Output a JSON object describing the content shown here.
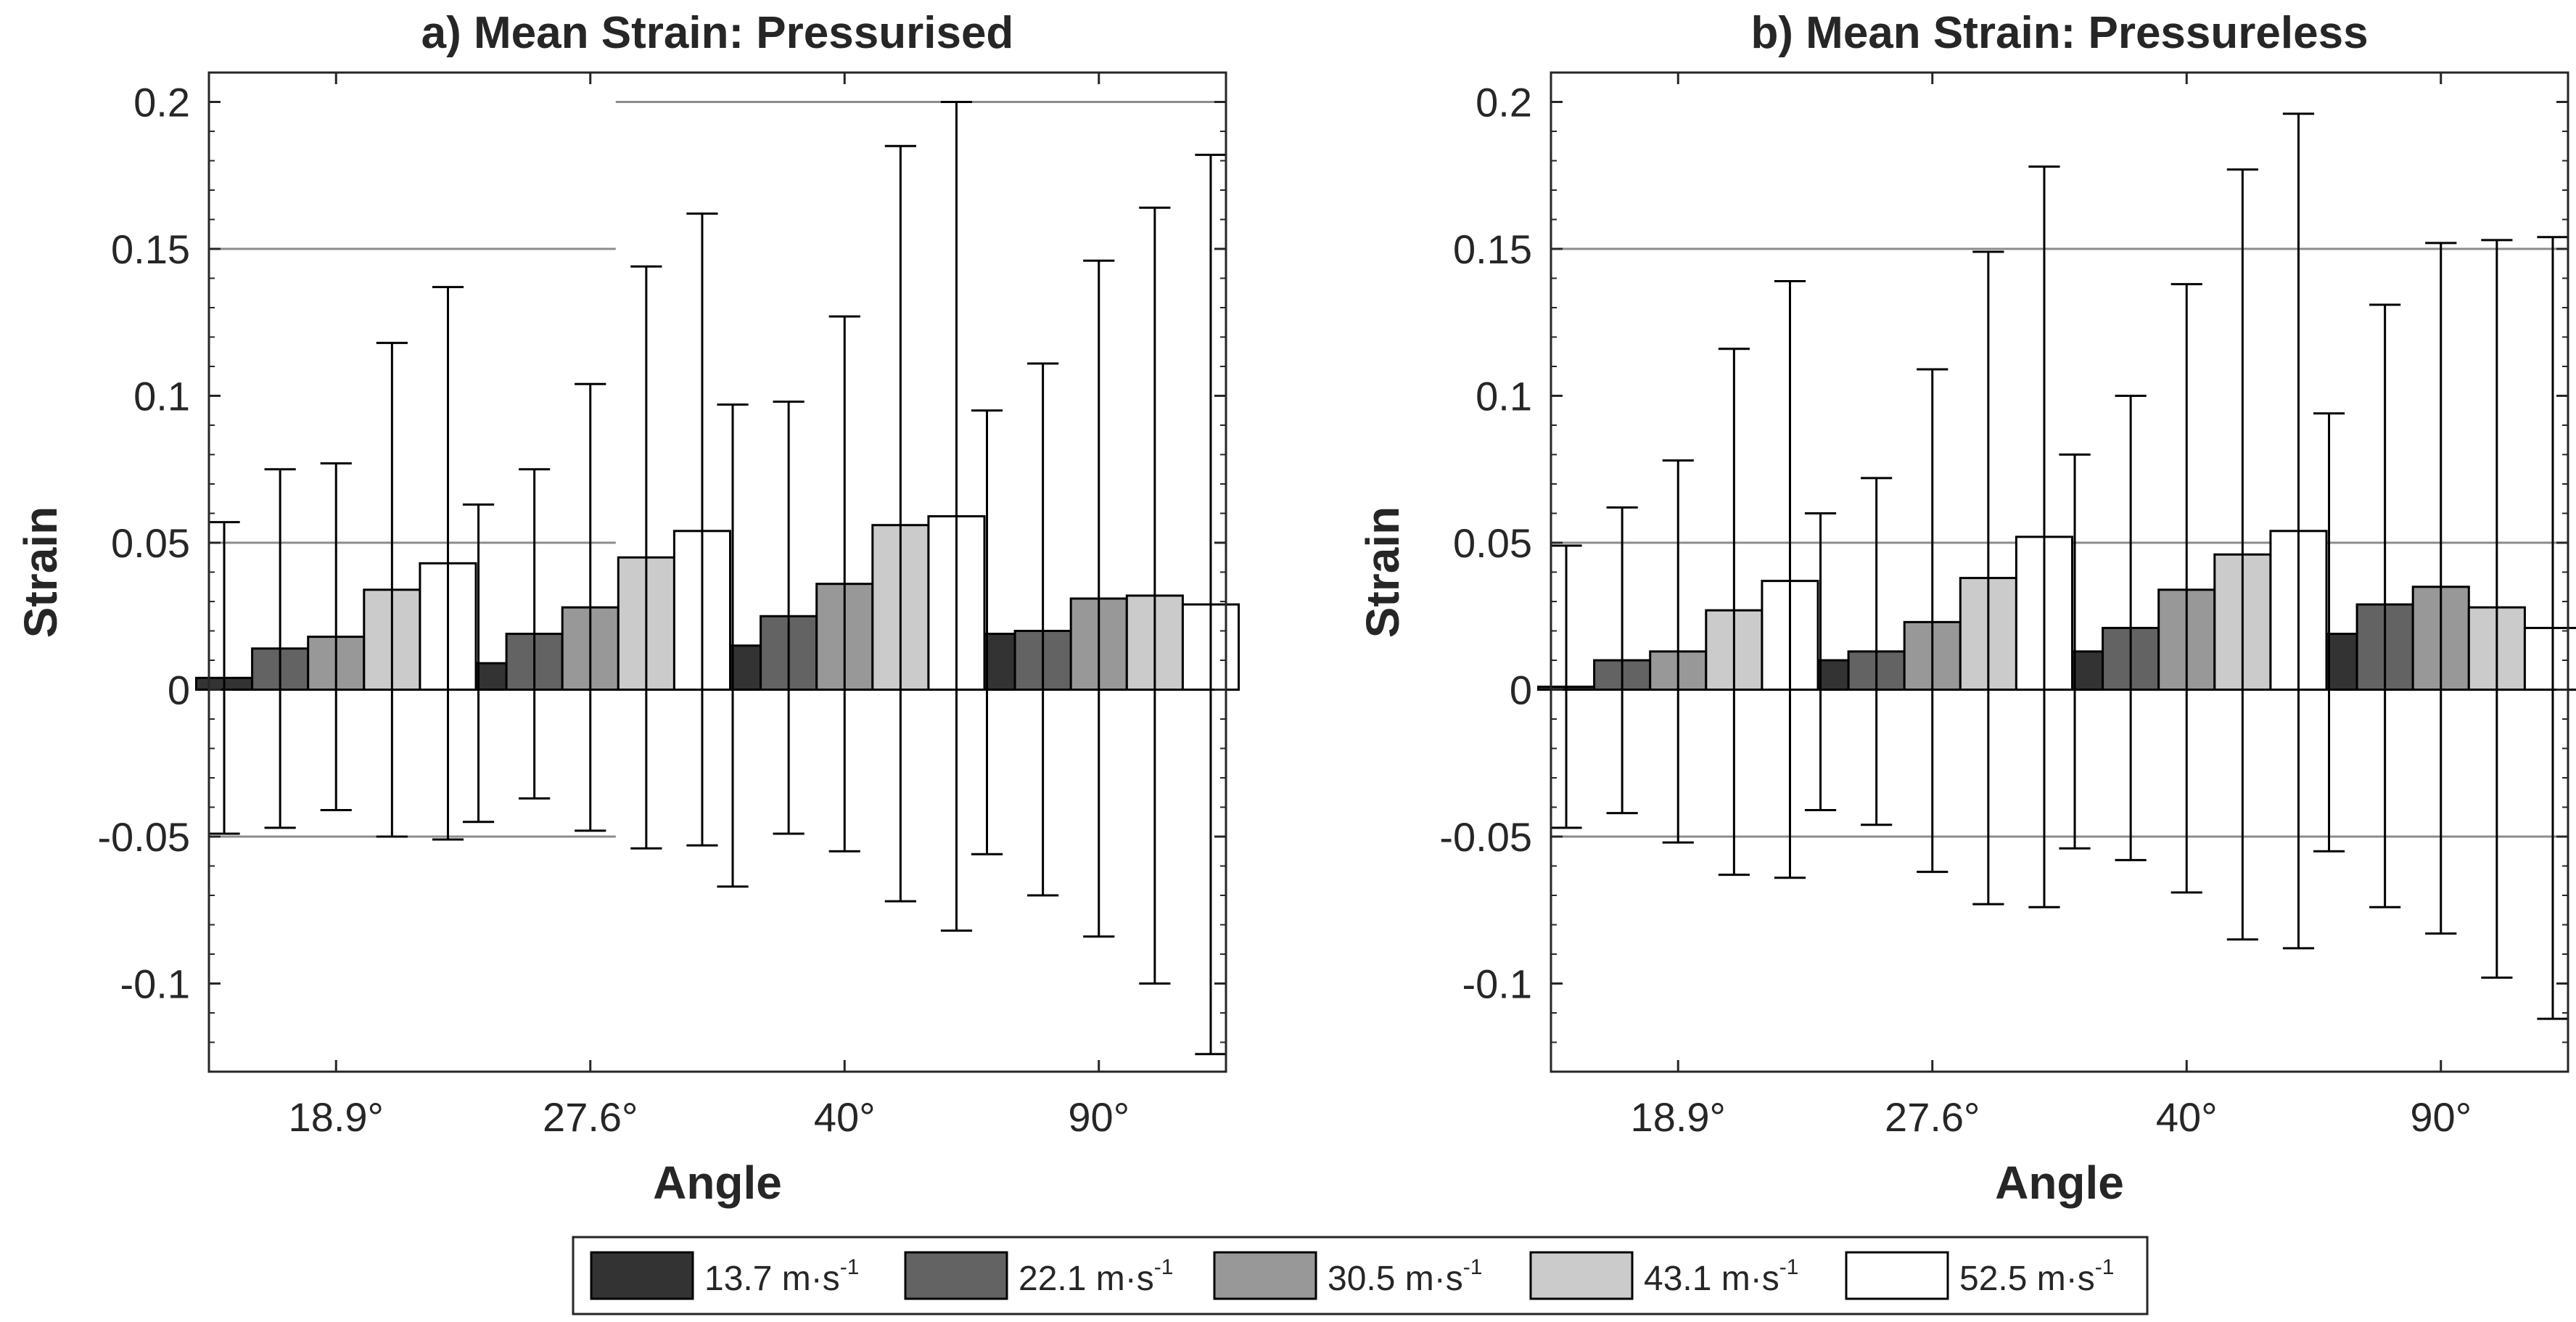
{
  "chart_data": [
    {
      "type": "bar",
      "title": "a) Mean Strain: Pressurised",
      "xlabel": "Angle",
      "ylabel": "Strain",
      "ylim": [
        -0.13,
        0.21
      ],
      "yticks": [
        -0.1,
        -0.05,
        0,
        0.05,
        0.1,
        0.15,
        0.2
      ],
      "ytick_labels": [
        "-0.1",
        "-0.05",
        "0",
        "0.05",
        "0.1",
        "0.15",
        "0.2"
      ],
      "categories": [
        "18.9°",
        "27.6°",
        "40°",
        "90°"
      ],
      "series": [
        {
          "name": "13.7 m·s-1",
          "values": [
            0.004,
            0.009,
            0.015,
            0.019
          ],
          "err_low": [
            -0.049,
            -0.045,
            -0.067,
            -0.056
          ],
          "err_high": [
            0.057,
            0.063,
            0.097,
            0.095
          ]
        },
        {
          "name": "22.1 m·s-1",
          "values": [
            0.014,
            0.019,
            0.025,
            0.02
          ],
          "err_low": [
            -0.047,
            -0.037,
            -0.049,
            -0.07
          ],
          "err_high": [
            0.075,
            0.075,
            0.098,
            0.111
          ]
        },
        {
          "name": "30.5 m·s-1",
          "values": [
            0.018,
            0.028,
            0.036,
            0.031
          ],
          "err_low": [
            -0.041,
            -0.048,
            -0.055,
            -0.084
          ],
          "err_high": [
            0.077,
            0.104,
            0.127,
            0.146
          ]
        },
        {
          "name": "43.1 m·s-1",
          "values": [
            0.034,
            0.045,
            0.056,
            0.032
          ],
          "err_low": [
            -0.05,
            -0.054,
            -0.072,
            -0.1
          ],
          "err_high": [
            0.118,
            0.144,
            0.185,
            0.164
          ]
        },
        {
          "name": "52.5 m·s-1",
          "values": [
            0.043,
            0.054,
            0.059,
            0.029
          ],
          "err_low": [
            -0.051,
            -0.053,
            -0.082,
            -0.124
          ],
          "err_high": [
            0.137,
            0.162,
            0.2,
            0.182
          ]
        }
      ],
      "reference_lines": [
        {
          "y": 0.15,
          "x_range": [
            0.5,
            2.5
          ]
        },
        {
          "y": 0.05,
          "x_range": [
            0.5,
            2.5
          ]
        },
        {
          "y": -0.05,
          "x_range": [
            0.5,
            2.5
          ]
        },
        {
          "y": 0.2,
          "x_range": [
            2.5,
            5.5
          ]
        }
      ],
      "grid": false
    },
    {
      "type": "bar",
      "title": "b) Mean Strain: Pressureless",
      "xlabel": "Angle",
      "ylabel": "Strain",
      "ylim": [
        -0.13,
        0.21
      ],
      "yticks": [
        -0.1,
        -0.05,
        0,
        0.05,
        0.1,
        0.15,
        0.2
      ],
      "ytick_labels": [
        "-0.1",
        "-0.05",
        "0",
        "0.05",
        "0.1",
        "0.15",
        "0.2"
      ],
      "categories": [
        "18.9°",
        "27.6°",
        "40°",
        "90°"
      ],
      "series": [
        {
          "name": "13.7 m·s-1",
          "values": [
            0.001,
            0.01,
            0.013,
            0.019
          ],
          "err_low": [
            -0.047,
            -0.041,
            -0.054,
            -0.055
          ],
          "err_high": [
            0.049,
            0.06,
            0.08,
            0.094
          ]
        },
        {
          "name": "22.1 m·s-1",
          "values": [
            0.01,
            0.013,
            0.021,
            0.029
          ],
          "err_low": [
            -0.042,
            -0.046,
            -0.058,
            -0.074
          ],
          "err_high": [
            0.062,
            0.072,
            0.1,
            0.131
          ]
        },
        {
          "name": "30.5 m·s-1",
          "values": [
            0.013,
            0.023,
            0.034,
            0.035
          ],
          "err_low": [
            -0.052,
            -0.062,
            -0.069,
            -0.083
          ],
          "err_high": [
            0.078,
            0.109,
            0.138,
            0.152
          ]
        },
        {
          "name": "43.1 m·s-1",
          "values": [
            0.027,
            0.038,
            0.046,
            0.028
          ],
          "err_low": [
            -0.063,
            -0.073,
            -0.085,
            -0.098
          ],
          "err_high": [
            0.116,
            0.149,
            0.177,
            0.153
          ]
        },
        {
          "name": "52.5 m·s-1",
          "values": [
            0.037,
            0.052,
            0.054,
            0.021
          ],
          "err_low": [
            -0.064,
            -0.074,
            -0.088,
            -0.112
          ],
          "err_high": [
            0.139,
            0.178,
            0.196,
            0.154
          ]
        }
      ],
      "reference_lines": [
        {
          "y": 0.15,
          "x_range": [
            0.5,
            5.5
          ]
        },
        {
          "y": 0.05,
          "x_range": [
            0.5,
            5.5
          ]
        },
        {
          "y": -0.05,
          "x_range": [
            0.5,
            5.5
          ]
        }
      ],
      "grid": false
    }
  ],
  "legend": {
    "position": "bottom-center",
    "entries": [
      {
        "value": "13.7 m·s",
        "exponent": "-1",
        "color": "#333333"
      },
      {
        "value": "22.1 m·s",
        "exponent": "-1",
        "color": "#636363"
      },
      {
        "value": "30.5 m·s",
        "exponent": "-1",
        "color": "#989898"
      },
      {
        "value": "43.1 m·s",
        "exponent": "-1",
        "color": "#cbcbcb"
      },
      {
        "value": "52.5 m·s",
        "exponent": "-1",
        "color": "#ffffff"
      }
    ]
  },
  "colors": {
    "axis": "#262626",
    "reference_line": "#8c8c8c",
    "bar_edge": "#000000"
  }
}
